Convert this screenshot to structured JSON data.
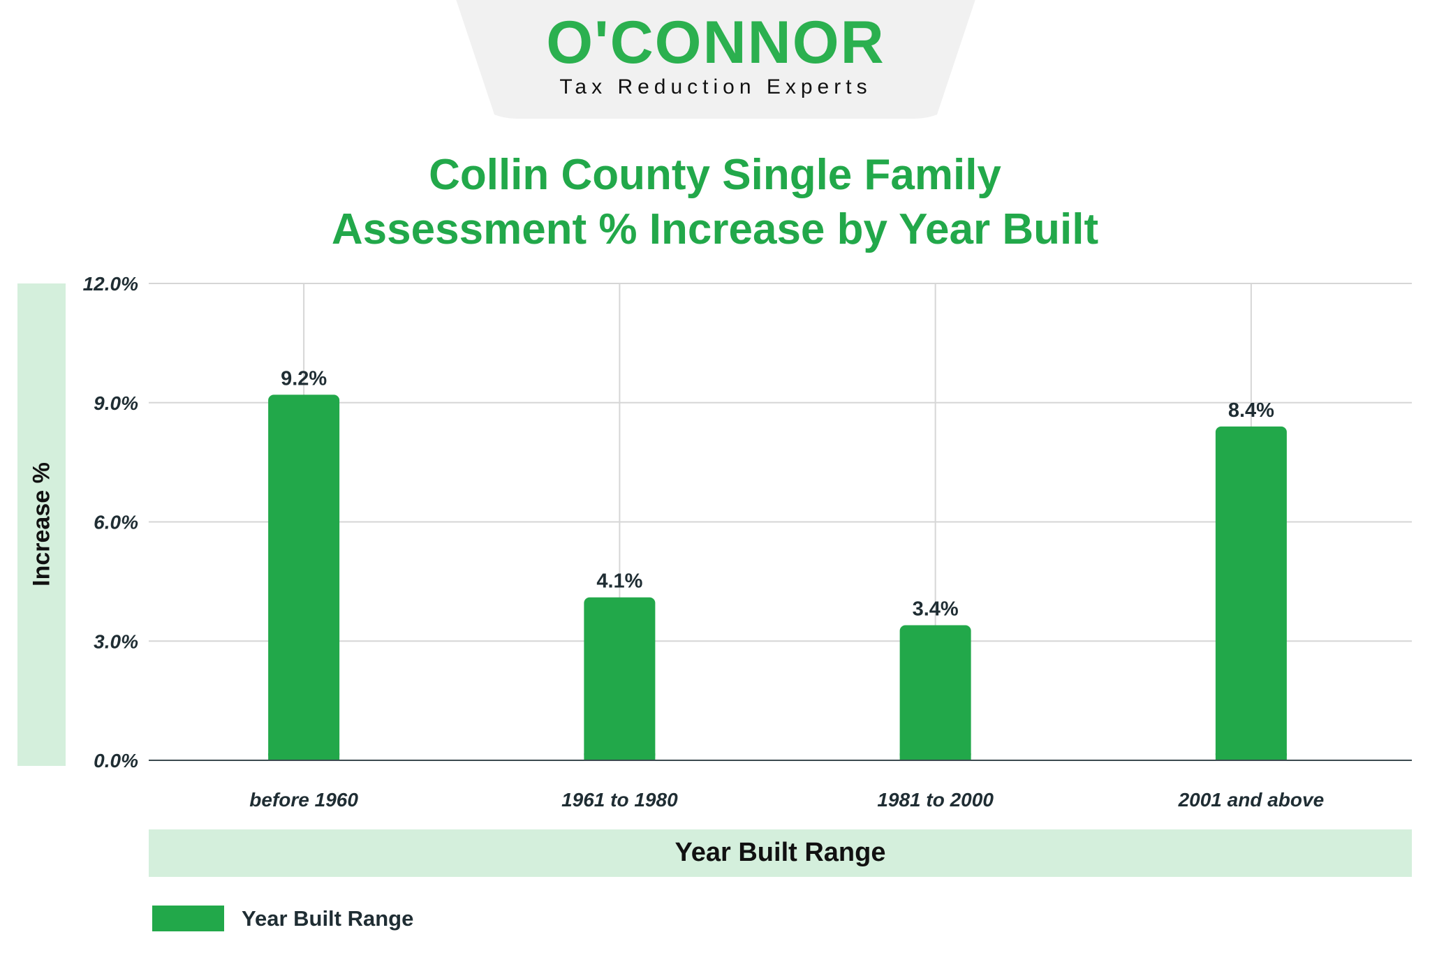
{
  "logo": {
    "name": "O'CONNOR",
    "tagline": "Tax Reduction Experts"
  },
  "colors": {
    "bar": "#22a84a",
    "title": "#22a84a",
    "band": "#d4efdc",
    "text": "#1f2d33"
  },
  "chart_data": {
    "type": "bar",
    "title": "Collin County Single Family Assessment % Increase by Year Built",
    "title_lines": [
      "Collin County Single Family",
      "Assessment % Increase by Year Built"
    ],
    "xlabel": "Year Built Range",
    "ylabel": "Increase %",
    "categories": [
      "before 1960",
      "1961 to 1980",
      "1981 to 2000",
      "2001 and above"
    ],
    "series": [
      {
        "name": "Year Built Range",
        "values": [
          9.2,
          4.1,
          3.4,
          8.4
        ]
      }
    ],
    "data_labels": [
      "9.2%",
      "4.1%",
      "3.4%",
      "8.4%"
    ],
    "ylim": [
      0,
      12
    ],
    "yticks": [
      0,
      3,
      6,
      9,
      12
    ],
    "ytick_labels": [
      "0.0%",
      "3.0%",
      "6.0%",
      "9.0%",
      "12.0%"
    ],
    "grid": true,
    "legend": "bottom-left"
  }
}
